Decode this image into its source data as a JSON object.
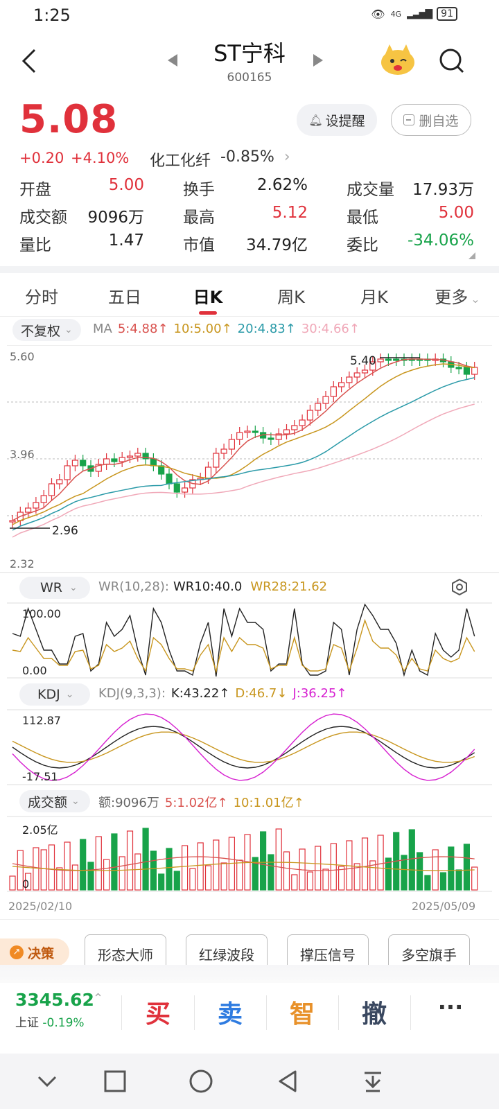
{
  "status": {
    "time": "1:25",
    "signal": "4G",
    "battery": "91"
  },
  "header": {
    "title": "ST宁科",
    "code": "600165"
  },
  "quote": {
    "price": "5.08",
    "change": "+0.20",
    "change_pct": "+4.10%",
    "sector": "化工化纤",
    "sector_pct": "-0.85%",
    "alert_button": "设提醒",
    "remove_button": "删自选"
  },
  "stats": [
    {
      "label": "开盘",
      "value": "5.00",
      "color": "red"
    },
    {
      "label": "换手",
      "value": "2.62%",
      "color": "dark"
    },
    {
      "label": "成交量",
      "value": "17.93万",
      "color": "dark"
    },
    {
      "label": "成交额",
      "value": "9096万",
      "color": "dark"
    },
    {
      "label": "最高",
      "value": "5.12",
      "color": "red"
    },
    {
      "label": "最低",
      "value": "5.00",
      "color": "red"
    },
    {
      "label": "量比",
      "value": "1.47",
      "color": "dark"
    },
    {
      "label": "市值",
      "value": "34.79亿",
      "color": "dark"
    },
    {
      "label": "委比",
      "value": "-34.06%",
      "color": "green"
    }
  ],
  "tabs": [
    "分时",
    "五日",
    "日K",
    "周K",
    "月K",
    "更多"
  ],
  "kchart": {
    "adjust": "不复权",
    "ma_label": "MA",
    "ma": [
      {
        "text": "5:4.88↑",
        "color": "#d9534f"
      },
      {
        "text": "10:5.00↑",
        "color": "#c8961e"
      },
      {
        "text": "20:4.83↑",
        "color": "#2a9aa8"
      },
      {
        "text": "30:4.66↑",
        "color": "#f0a8b8"
      }
    ],
    "y_top": "5.60",
    "y_mid": "3.96",
    "y_bot": "2.32",
    "high_mark": "5.40",
    "low_mark": "2.96"
  },
  "wr": {
    "selector": "WR",
    "params": "WR(10,28):",
    "wr10": "WR10:40.0",
    "wr28": "WR28:21.62",
    "y_top": "100.00",
    "y_bot": "0.00"
  },
  "kdj": {
    "selector": "KDJ",
    "params": "KDJ(9,3,3):",
    "k": "K:43.22↑",
    "d": "D:46.7↓",
    "j": "J:36.25↑",
    "y_top": "112.87",
    "y_bot": "-17.51"
  },
  "amount": {
    "selector": "成交额",
    "value": "额:9096万",
    "ma5": "5:1.02亿↑",
    "ma10": "10:1.01亿↑",
    "y_top": "2.05亿",
    "y_bot": "0"
  },
  "dates": {
    "start": "2025/02/10",
    "end": "2025/05/09"
  },
  "tools": {
    "decision": "决策",
    "buttons": [
      "形态大师",
      "红绿波段",
      "撑压信号",
      "多空旗手"
    ]
  },
  "index": {
    "value": "3345.62",
    "name": "上证",
    "pct": "-0.19%"
  },
  "trade": {
    "buy": "买",
    "sell": "卖",
    "smart": "智",
    "cancel": "撤",
    "more": "···"
  },
  "colors": {
    "up": "#e0313b",
    "down": "#18a34a",
    "ma5": "#d9534f",
    "ma10": "#c8961e",
    "ma20": "#2a9aa8",
    "ma30": "#f0a8b8"
  }
}
